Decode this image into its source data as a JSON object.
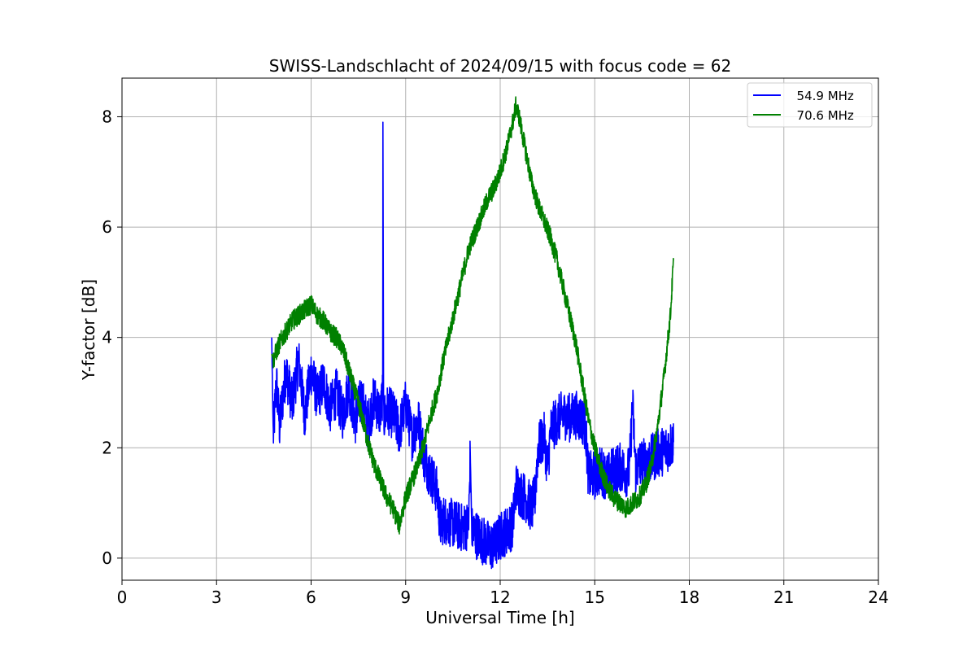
{
  "chart_data": {
    "type": "line",
    "title": "SWISS-Landschlacht of 2024/09/15 with focus code = 62",
    "xlabel": "Universal Time [h]",
    "ylabel": "Y-factor [dB]",
    "xlim": [
      0,
      24
    ],
    "ylim": [
      -0.4,
      8.7
    ],
    "xticks": [
      0,
      3,
      6,
      9,
      12,
      15,
      18,
      21,
      24
    ],
    "yticks": [
      0,
      2,
      4,
      6,
      8
    ],
    "grid": true,
    "legend": "top-right",
    "series": [
      {
        "name": "  54.9 MHz",
        "color": "#0000ff",
        "x": [
          4.75,
          4.8,
          4.9,
          5.0,
          5.2,
          5.4,
          5.6,
          5.8,
          6.0,
          6.2,
          6.4,
          6.6,
          6.8,
          7.0,
          7.2,
          7.4,
          7.6,
          7.8,
          8.0,
          8.2,
          8.27,
          8.28,
          8.3,
          8.4,
          8.6,
          8.8,
          9.0,
          9.2,
          9.4,
          9.6,
          9.8,
          10.0,
          10.1,
          10.2,
          10.4,
          10.6,
          10.8,
          11.0,
          11.05,
          11.1,
          11.2,
          11.4,
          11.6,
          11.8,
          12.0,
          12.2,
          12.4,
          12.5,
          12.6,
          12.8,
          13.0,
          13.1,
          13.2,
          13.4,
          13.5,
          13.6,
          13.8,
          14.0,
          14.2,
          14.4,
          14.6,
          14.7,
          14.8,
          15.0,
          15.2,
          15.4,
          15.6,
          15.8,
          16.0,
          16.1,
          16.2,
          16.3,
          16.4,
          16.6,
          16.8,
          17.0,
          17.2,
          17.4,
          17.5
        ],
        "y": [
          4.0,
          2.2,
          3.2,
          2.4,
          3.4,
          2.8,
          3.6,
          2.6,
          3.4,
          2.9,
          3.2,
          2.7,
          3.0,
          2.6,
          3.1,
          2.5,
          2.9,
          2.4,
          2.9,
          2.6,
          3.0,
          7.9,
          2.5,
          2.7,
          2.6,
          2.3,
          2.8,
          2.2,
          2.5,
          1.8,
          1.5,
          1.2,
          0.6,
          0.7,
          0.65,
          0.6,
          0.55,
          0.6,
          1.9,
          0.5,
          0.45,
          0.35,
          0.25,
          0.2,
          0.4,
          0.5,
          0.6,
          1.3,
          1.2,
          1.1,
          0.9,
          1.1,
          2.0,
          2.2,
          1.6,
          2.3,
          2.5,
          2.6,
          2.55,
          2.6,
          2.5,
          2.4,
          1.5,
          1.5,
          1.6,
          1.45,
          1.6,
          1.65,
          1.55,
          1.6,
          2.8,
          1.6,
          1.7,
          1.75,
          1.8,
          1.9,
          1.95,
          2.05,
          2.1
        ]
      },
      {
        "name": "  70.6 MHz",
        "color": "#008000",
        "x": [
          4.75,
          4.8,
          5.0,
          5.2,
          5.4,
          5.6,
          5.8,
          6.0,
          6.2,
          6.4,
          6.6,
          6.8,
          7.0,
          7.2,
          7.4,
          7.6,
          7.8,
          8.0,
          8.2,
          8.4,
          8.6,
          8.8,
          9.0,
          9.2,
          9.4,
          9.6,
          9.8,
          10.0,
          10.2,
          10.4,
          10.6,
          10.8,
          11.0,
          11.2,
          11.4,
          11.6,
          11.8,
          12.0,
          12.2,
          12.4,
          12.5,
          12.6,
          12.8,
          13.0,
          13.2,
          13.4,
          13.6,
          13.8,
          14.0,
          14.2,
          14.4,
          14.6,
          14.8,
          15.0,
          15.2,
          15.4,
          15.6,
          15.8,
          16.0,
          16.2,
          16.4,
          16.6,
          16.8,
          17.0,
          17.2,
          17.4,
          17.5
        ],
        "y": [
          3.7,
          3.6,
          3.9,
          4.1,
          4.3,
          4.4,
          4.5,
          4.6,
          4.4,
          4.3,
          4.1,
          4.0,
          3.8,
          3.4,
          3.0,
          2.6,
          2.1,
          1.7,
          1.4,
          1.1,
          0.9,
          0.6,
          1.1,
          1.4,
          1.7,
          2.1,
          2.6,
          3.0,
          3.6,
          4.1,
          4.6,
          5.1,
          5.6,
          5.9,
          6.2,
          6.5,
          6.7,
          7.0,
          7.4,
          7.9,
          8.2,
          8.0,
          7.4,
          6.8,
          6.4,
          6.1,
          5.8,
          5.4,
          4.9,
          4.4,
          3.9,
          3.2,
          2.5,
          2.0,
          1.6,
          1.3,
          1.1,
          1.0,
          0.9,
          1.0,
          1.1,
          1.3,
          1.7,
          2.4,
          3.3,
          4.4,
          5.4
        ]
      }
    ]
  }
}
